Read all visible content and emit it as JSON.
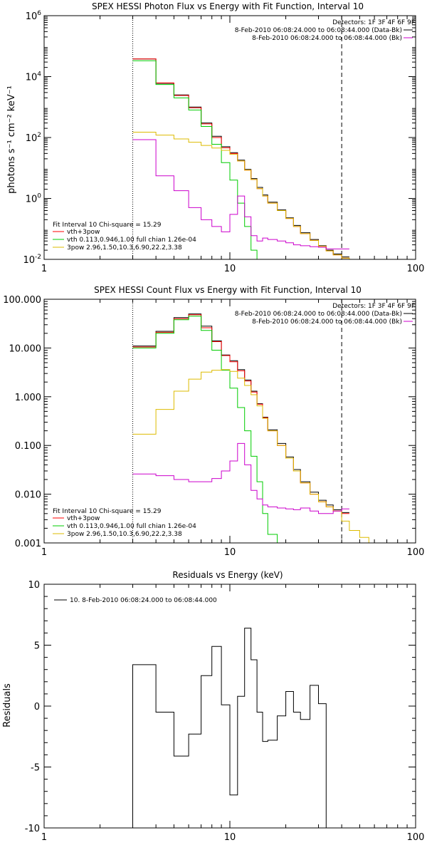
{
  "panels": [
    {
      "id": "photon",
      "title": "SPEX HESSI Photon Flux vs Energy with Fit Function, Interval 10",
      "ylabel": "photons s⁻¹ cm⁻² keV⁻¹",
      "header": [
        {
          "text": "Detectors: 1F 3F 4F 6F 9F",
          "color": ""
        },
        {
          "text": "8-Feb-2010 06:08:24.000 to 06:08:44.000 (Data-Bk)",
          "color": "#000000"
        },
        {
          "text": "8-Feb-2010 06:08:24.000 to 06:08:44.000 (Bk)",
          "color": "#cc00cc"
        }
      ],
      "fit_legend": [
        {
          "text": "Fit Interval 10    Chi-square = 15.29",
          "color": ""
        },
        {
          "text": "vth+3pow",
          "color": "#ff0000"
        },
        {
          "text": "vth 0.113,0.946,1.00  full chian 1.26e-04",
          "color": "#00cc00"
        },
        {
          "text": "3pow 2.96,1.50,10.3,6.90,22.2,3.38",
          "color": "#ddbb00"
        }
      ]
    },
    {
      "id": "count",
      "title": "SPEX HESSI Count Flux vs Energy with Fit Function, Interval 10",
      "ylabel": "",
      "header": [
        {
          "text": "Detectors: 1F 3F 4F 6F 9F",
          "color": ""
        },
        {
          "text": "8-Feb-2010 06:08:24.000 to 06:08:44.000 (Data-Bk)",
          "color": "#000000"
        },
        {
          "text": "8-Feb-2010 06:08:24.000 to 06:08:44.000 (Bk)",
          "color": "#cc00cc"
        }
      ],
      "fit_legend": [
        {
          "text": "Fit Interval 10    Chi-square = 15.29",
          "color": ""
        },
        {
          "text": "vth+3pow",
          "color": "#ff0000"
        },
        {
          "text": "vth 0.113,0.946,1.00  full chian 1.26e-04",
          "color": "#00cc00"
        },
        {
          "text": "3pow 2.96,1.50,10.3,6.90,22.2,3.38",
          "color": "#ddbb00"
        }
      ]
    },
    {
      "id": "resid",
      "title": "Residuals vs Energy (keV)",
      "ylabel": "Residuals",
      "legend": [
        {
          "text": "10.  8-Feb-2010 06:08:24.000 to 06:08:44.000",
          "color": "#000000"
        }
      ]
    }
  ],
  "chart_data": [
    {
      "type": "line",
      "title": "SPEX HESSI Photon Flux vs Energy with Fit Function, Interval 10",
      "xlabel": "",
      "ylabel": "photons s⁻¹ cm⁻² keV⁻¹",
      "xscale": "log",
      "yscale": "log",
      "xlim": [
        1,
        100
      ],
      "ylim": [
        0.01,
        1000000
      ],
      "xticks": [
        "1",
        "10",
        "100"
      ],
      "yticks": [
        {
          "base": "10",
          "exp": "-2"
        },
        {
          "base": "10",
          "exp": "0"
        },
        {
          "base": "10",
          "exp": "2"
        },
        {
          "base": "10",
          "exp": "4"
        },
        {
          "base": "10",
          "exp": "6"
        }
      ],
      "vlines": [
        {
          "x": 3,
          "style": "dotted"
        },
        {
          "x": 40,
          "style": "dashed"
        }
      ],
      "edges": [
        3,
        4,
        5,
        6,
        7,
        8,
        9,
        10,
        11,
        12,
        13,
        14,
        15,
        16,
        18,
        20,
        22,
        24,
        27,
        30,
        33,
        36,
        40,
        44,
        50
      ],
      "series": [
        {
          "name": "(Data-Bk)",
          "color": "#000000",
          "values": [
            38000,
            6000,
            2500,
            1000,
            300,
            110,
            50,
            32,
            18,
            9,
            4.5,
            2.3,
            1.3,
            0.75,
            0.42,
            0.23,
            0.13,
            0.075,
            0.045,
            0.028,
            0.02,
            0.015,
            0.012
          ]
        },
        {
          "name": "vth+3pow",
          "color": "#ff0000",
          "values": [
            38000,
            6200,
            2400,
            950,
            280,
            100,
            46,
            30,
            17,
            8.5,
            4.2,
            2.1,
            1.2,
            0.7,
            0.4,
            0.22,
            0.12,
            0.07,
            0.042,
            0.027,
            0.019,
            0.014,
            0.011
          ]
        },
        {
          "name": "vth",
          "color": "#00cc00",
          "values": [
            33000,
            5500,
            2000,
            800,
            230,
            60,
            15,
            4,
            0.7,
            0.12,
            0.02,
            0.006
          ]
        },
        {
          "name": "3pow",
          "color": "#ddbb00",
          "values": [
            150,
            120,
            90,
            70,
            55,
            45,
            38,
            28,
            17,
            8.5,
            4.2,
            2.1,
            1.2,
            0.7,
            0.4,
            0.22,
            0.12,
            0.07,
            0.042,
            0.027,
            0.019,
            0.014,
            0.011,
            0.008
          ]
        },
        {
          "name": "(Bk)",
          "color": "#cc00cc",
          "values": [
            85,
            5.5,
            1.8,
            0.5,
            0.2,
            0.12,
            0.08,
            0.3,
            1.2,
            0.25,
            0.06,
            0.04,
            0.05,
            0.045,
            0.04,
            0.035,
            0.03,
            0.028,
            0.026,
            0.025,
            0.022,
            0.022,
            0.022
          ]
        }
      ]
    },
    {
      "type": "line",
      "title": "SPEX HESSI Count Flux vs Energy with Fit Function, Interval 10",
      "xlabel": "",
      "ylabel": "",
      "xscale": "log",
      "yscale": "log",
      "xlim": [
        1,
        100
      ],
      "ylim": [
        0.001,
        100
      ],
      "xticks": [
        "1",
        "10",
        "100"
      ],
      "yticks": [
        {
          "base": "0.001",
          "exp": ""
        },
        {
          "base": "0.010",
          "exp": ""
        },
        {
          "base": "0.100",
          "exp": ""
        },
        {
          "base": "1.000",
          "exp": ""
        },
        {
          "base": "10.000",
          "exp": ""
        },
        {
          "base": "100.000",
          "exp": ""
        }
      ],
      "vlines": [
        {
          "x": 3,
          "style": "dotted"
        },
        {
          "x": 40,
          "style": "dashed"
        }
      ],
      "edges": [
        3,
        4,
        5,
        6,
        7,
        8,
        9,
        10,
        11,
        12,
        13,
        14,
        15,
        16,
        18,
        20,
        22,
        24,
        27,
        30,
        33,
        36,
        40,
        44,
        50,
        56,
        62
      ],
      "series": [
        {
          "name": "(Data-Bk)",
          "color": "#000000",
          "values": [
            11,
            22,
            42,
            50,
            28,
            14,
            7.2,
            5.5,
            3.6,
            2.2,
            1.3,
            0.72,
            0.38,
            0.21,
            0.11,
            0.058,
            0.032,
            0.018,
            0.011,
            0.0075,
            0.006,
            0.0048,
            0.0042
          ]
        },
        {
          "name": "vth+3pow",
          "color": "#ff0000",
          "values": [
            10.5,
            21,
            40,
            48,
            26,
            13.5,
            7,
            5.2,
            3.4,
            2.1,
            1.25,
            0.7,
            0.37,
            0.2,
            0.1,
            0.055,
            0.03,
            0.017,
            0.01,
            0.007,
            0.0055,
            0.0045,
            0.004
          ]
        },
        {
          "name": "vth",
          "color": "#00cc00",
          "values": [
            10,
            20,
            38,
            45,
            23,
            9,
            3.5,
            1.5,
            0.6,
            0.2,
            0.06,
            0.018,
            0.004,
            0.0015,
            0.001
          ]
        },
        {
          "name": "3pow",
          "color": "#ddbb00",
          "values": [
            0.17,
            0.55,
            1.3,
            2.3,
            3.2,
            3.5,
            3.6,
            3.3,
            2.4,
            1.7,
            1.1,
            0.65,
            0.36,
            0.2,
            0.1,
            0.055,
            0.03,
            0.017,
            0.01,
            0.007,
            0.0055,
            0.0045,
            0.0028,
            0.0018,
            0.0013,
            0.001
          ]
        },
        {
          "name": "(Bk)",
          "color": "#cc00cc",
          "values": [
            0.026,
            0.024,
            0.02,
            0.018,
            0.018,
            0.021,
            0.03,
            0.048,
            0.11,
            0.04,
            0.012,
            0.008,
            0.006,
            0.0055,
            0.0052,
            0.005,
            0.0048,
            0.0052,
            0.0045,
            0.004,
            0.004,
            0.0045,
            0.005
          ]
        }
      ]
    },
    {
      "type": "line",
      "title": "Residuals vs Energy (keV)",
      "xlabel": "",
      "ylabel": "Residuals",
      "xscale": "log",
      "yscale": "linear",
      "xlim": [
        1,
        100
      ],
      "ylim": [
        -10,
        10
      ],
      "xticks": [
        "1",
        "10",
        "100"
      ],
      "yticks": [
        {
          "v": -10,
          "label": "-10"
        },
        {
          "v": -5,
          "label": "-5"
        },
        {
          "v": 0,
          "label": "0"
        },
        {
          "v": 5,
          "label": "5"
        },
        {
          "v": 10,
          "label": "10"
        }
      ],
      "edges": [
        3,
        4,
        5,
        6,
        7,
        8,
        9,
        10,
        11,
        12,
        13,
        14,
        15,
        16,
        18,
        20,
        22,
        24,
        27,
        30,
        33,
        36,
        40
      ],
      "series": [
        {
          "name": "10.  8-Feb-2010 06:08:24.000 to 06:08:44.000",
          "color": "#000000",
          "values": [
            3.4,
            -0.5,
            -4.1,
            -2.3,
            2.5,
            4.9,
            0.1,
            -7.3,
            0.8,
            6.4,
            3.8,
            -0.5,
            -2.9,
            -2.8,
            -0.8,
            1.2,
            -0.5,
            -1.1,
            1.7,
            0.2
          ]
        }
      ]
    }
  ]
}
